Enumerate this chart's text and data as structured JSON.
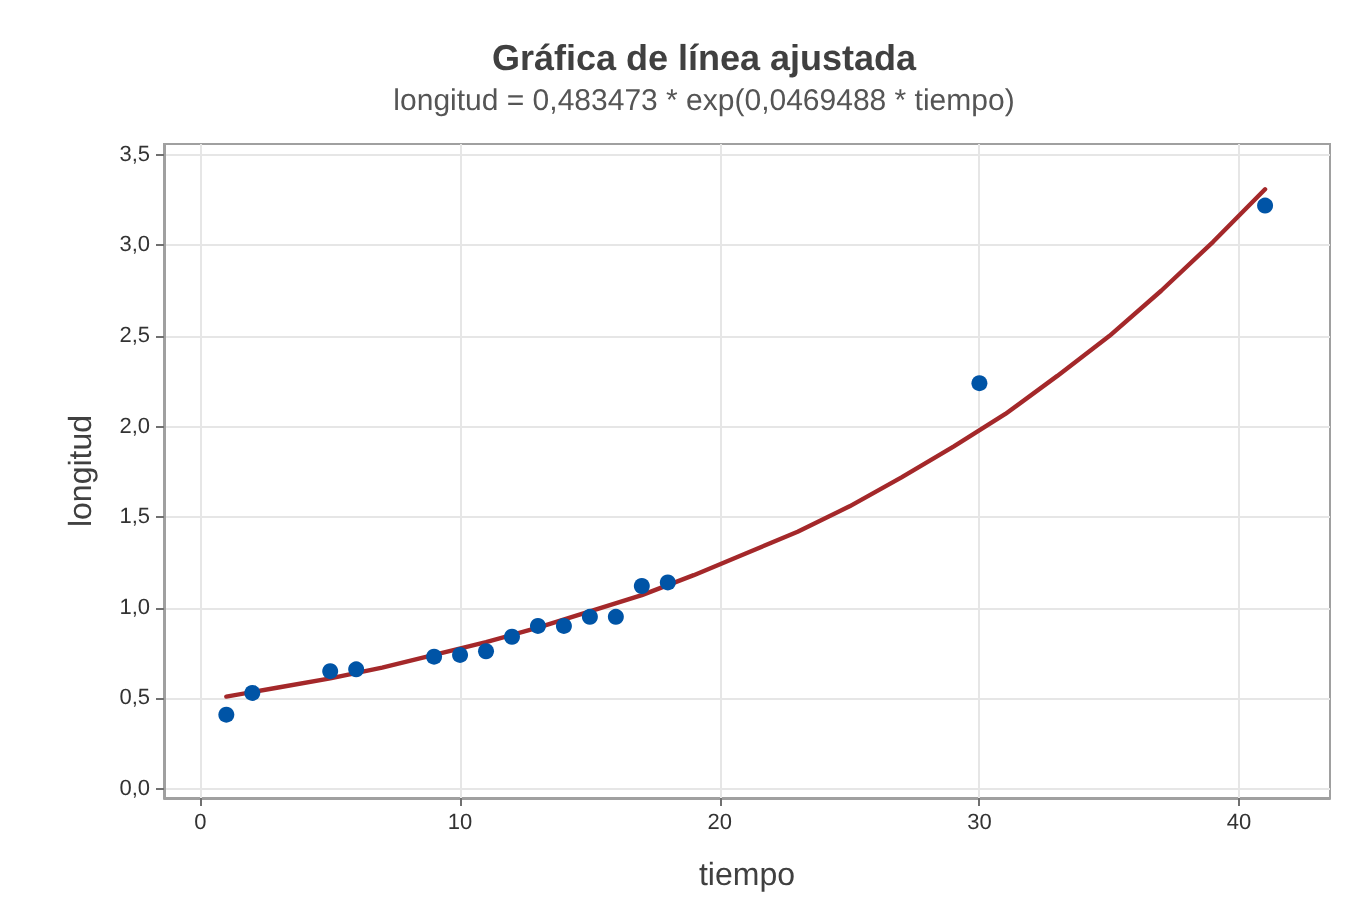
{
  "chart_data": {
    "type": "scatter",
    "title": "Gráfica de línea ajustada",
    "subtitle": "longitud = 0,483473 * exp(0,0469488 * tiempo)",
    "xlabel": "tiempo",
    "ylabel": "longitud",
    "series": [
      {
        "color": "#0054a6",
        "marker": "circle",
        "x": [
          1,
          2,
          5,
          6,
          9,
          10,
          11,
          12,
          13,
          14,
          15,
          16,
          17,
          18,
          30,
          41
        ],
        "values": [
          0.41,
          0.53,
          0.65,
          0.66,
          0.73,
          0.74,
          0.76,
          0.84,
          0.9,
          0.9,
          0.95,
          0.95,
          1.12,
          1.14,
          2.24,
          3.22
        ]
      },
      {
        "type": "line",
        "color": "#a4282a",
        "marker": "none",
        "line_style": "solid",
        "x": [
          1,
          3,
          5,
          7,
          9,
          11,
          13,
          15,
          17,
          19,
          21,
          23,
          25,
          27,
          29,
          31,
          33,
          35,
          37,
          39,
          41
        ],
        "values": [
          0.51,
          0.56,
          0.61,
          0.67,
          0.74,
          0.81,
          0.89,
          0.98,
          1.07,
          1.18,
          1.3,
          1.42,
          1.56,
          1.72,
          1.89,
          2.07,
          2.28,
          2.5,
          2.75,
          3.02,
          3.31
        ]
      }
    ],
    "xlim": [
      -1.4,
      43.5
    ],
    "ylim": [
      -0.05,
      3.56
    ],
    "xticks": [
      0,
      10,
      20,
      30,
      40
    ],
    "yticks": [
      {
        "value": 0,
        "label": "0,0"
      },
      {
        "value": 0.5,
        "label": "0,5"
      },
      {
        "value": 1,
        "label": "1,0"
      },
      {
        "value": 1.5,
        "label": "1,5"
      },
      {
        "value": 2,
        "label": "2,0"
      },
      {
        "value": 2.5,
        "label": "2,5"
      },
      {
        "value": 3,
        "label": "3,0"
      },
      {
        "value": 3.5,
        "label": "3,5"
      }
    ],
    "grid": true
  }
}
